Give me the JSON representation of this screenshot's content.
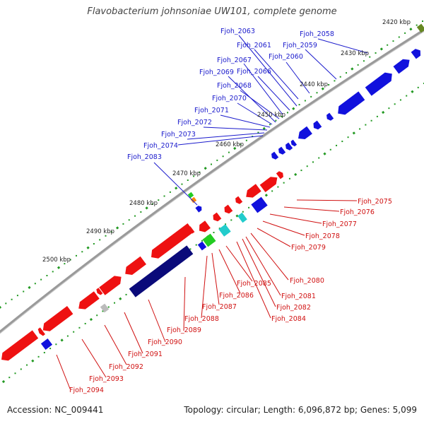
{
  "header": {
    "title": "Flavobacterium johnsoniae UW101, complete genome"
  },
  "footer": {
    "accession": "Accession: NC_009441",
    "summary": "Topology: circular; Length: 6,096,872 bp; Genes: 5,099"
  },
  "colors": {
    "forward_gene": "#ee1111",
    "reverse_gene": "#1111dd",
    "dark_gene": "#0a0a7a",
    "green_gene": "#22cc22",
    "cyan_gene": "#22cccc",
    "gray_gene": "#bbbbbb",
    "orange_gene": "#ff8800",
    "olive_gene": "#668822",
    "backbone": "#9a9a9a",
    "tick": "#229922",
    "blue_label": "#1a1acc",
    "red_label": "#d01010"
  },
  "scale": {
    "kbp_labels": [
      "2420 kbp",
      "2430 kbp",
      "2440 kbp",
      "2450 kbp",
      "2460 kbp",
      "2470 kbp",
      "2480 kbp",
      "2490 kbp",
      "2500 kbp"
    ]
  },
  "genes": {
    "top": [
      "Fjoh_2058",
      "Fjoh_2059",
      "Fjoh_2060",
      "Fjoh_2061",
      "Fjoh_2063",
      "Fjoh_2066",
      "Fjoh_2067",
      "Fjoh_2068",
      "Fjoh_2069",
      "Fjoh_2070",
      "Fjoh_2071",
      "Fjoh_2072",
      "Fjoh_2073",
      "Fjoh_2074",
      "Fjoh_2083"
    ],
    "bottom": [
      "Fjoh_2075",
      "Fjoh_2076",
      "Fjoh_2077",
      "Fjoh_2078",
      "Fjoh_2079",
      "Fjoh_2080",
      "Fjoh_2081",
      "Fjoh_2082",
      "Fjoh_2084",
      "Fjoh_2085",
      "Fjoh_2086",
      "Fjoh_2087",
      "Fjoh_2088",
      "Fjoh_2089",
      "Fjoh_2090",
      "Fjoh_2091",
      "Fjoh_2092",
      "Fjoh_2093",
      "Fjoh_2094"
    ]
  }
}
